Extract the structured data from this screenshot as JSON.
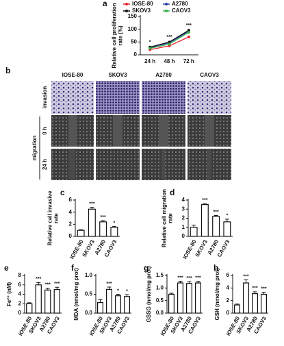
{
  "chart_data": [
    {
      "panel": "a",
      "type": "line",
      "ylabel": [
        "Relative cell proliferation",
        "rate (%)"
      ],
      "categories": [
        "24 h",
        "48 h",
        "72 h"
      ],
      "series": [
        {
          "name": "IOSE-80",
          "color": "#e8202a",
          "values": [
            20,
            35,
            70
          ],
          "significance": [
            null,
            null,
            null
          ]
        },
        {
          "name": "A2780",
          "color": "#2b3fa8",
          "values": [
            28,
            47,
            92
          ],
          "significance": [
            null,
            null,
            null
          ]
        },
        {
          "name": "SKOV3",
          "color": "#111111",
          "values": [
            30,
            50,
            96
          ],
          "significance": [
            "*",
            "***",
            "***"
          ]
        },
        {
          "name": "CAOV3",
          "color": "#2fb34a",
          "values": [
            25,
            42,
            88
          ],
          "significance": [
            null,
            null,
            null
          ]
        }
      ],
      "ylim": [
        0,
        150
      ],
      "yticks": [
        0,
        50,
        100,
        150
      ]
    },
    {
      "panel": "c",
      "type": "bar",
      "ylabel": [
        "Relative cell invasive",
        "rate"
      ],
      "categories": [
        "IOSE-80",
        "SKOV3",
        "A2780",
        "CAOV3"
      ],
      "values": [
        1,
        4.5,
        2.4,
        1.5
      ],
      "errors": [
        0.1,
        0.3,
        0.2,
        0.15
      ],
      "significance": [
        null,
        "***",
        "***",
        "*"
      ],
      "ylim": [
        0,
        6
      ],
      "yticks": [
        0,
        2,
        4,
        6
      ]
    },
    {
      "panel": "d",
      "type": "bar",
      "ylabel": [
        "Relative cell migration",
        "rate"
      ],
      "categories": [
        "IOSE-80",
        "SKOV3",
        "A2780",
        "CAOV3"
      ],
      "values": [
        1,
        3.5,
        2.2,
        1.6
      ],
      "errors": [
        0.25,
        0.1,
        0.1,
        0.3
      ],
      "significance": [
        null,
        "***",
        "***",
        "*"
      ],
      "ylim": [
        0,
        4
      ],
      "yticks": [
        0,
        1,
        2,
        3,
        4
      ]
    },
    {
      "panel": "e",
      "type": "bar",
      "ylabel": [
        "Fe²⁺ (nM)"
      ],
      "categories": [
        "IOSE-80",
        "SKOV3",
        "A2780",
        "CAOV3"
      ],
      "values": [
        2,
        6,
        4.9,
        5
      ],
      "errors": [
        0.2,
        0.5,
        0.4,
        0.5
      ],
      "significance": [
        null,
        "***",
        "***",
        "***"
      ],
      "ylim": [
        0,
        8
      ],
      "yticks": [
        0,
        2,
        4,
        6,
        8
      ]
    },
    {
      "panel": "f",
      "type": "bar",
      "ylabel": [
        "MDA (nmol/mg prot)"
      ],
      "categories": [
        "IOSE-80",
        "SKOV3",
        "A2780",
        "CAOV3"
      ],
      "values": [
        0.28,
        0.63,
        0.46,
        0.44
      ],
      "errors": [
        0.08,
        0.06,
        0.04,
        0.05
      ],
      "significance": [
        null,
        "***",
        "*",
        "*"
      ],
      "ylim": [
        0,
        1
      ],
      "yticks": [
        {
          "value": 0,
          "label": "0.0"
        },
        0.5,
        {
          "value": 1,
          "label": "1.0"
        }
      ]
    },
    {
      "panel": "g",
      "type": "bar",
      "ylabel": [
        "GSSG (nmol/mg prot)"
      ],
      "categories": [
        "IOSE-80",
        "SKOV3",
        "A2780",
        "CAOV3"
      ],
      "values": [
        0.75,
        1.2,
        1.18,
        1.2
      ],
      "errors": [
        0.04,
        0.06,
        0.07,
        0.06
      ],
      "significance": [
        null,
        "***",
        "***",
        "***"
      ],
      "ylim": [
        0,
        1.5
      ],
      "yticks": [
        {
          "value": 0,
          "label": "0.0"
        },
        0.5,
        {
          "value": 1,
          "label": "1.0"
        },
        1.5
      ]
    },
    {
      "panel": "h",
      "type": "bar",
      "ylabel": [
        "GSH (nmol/mg prot)"
      ],
      "categories": [
        "IOSE-80",
        "SKOV3",
        "A2780",
        "CAOV3"
      ],
      "values": [
        1.3,
        4.8,
        3.1,
        3.0
      ],
      "errors": [
        0.15,
        0.5,
        0.3,
        0.3
      ],
      "significance": [
        null,
        "***",
        "***",
        "***"
      ],
      "ylim": [
        0,
        6
      ],
      "yticks": [
        0,
        2,
        4,
        6
      ]
    }
  ],
  "image_panel": {
    "panel": "b",
    "columns": [
      "IOSE-80",
      "SKOV3",
      "A2780",
      "CAOV3"
    ],
    "rows": [
      "invasion",
      "0 h",
      "24 h"
    ],
    "group": "migration"
  }
}
